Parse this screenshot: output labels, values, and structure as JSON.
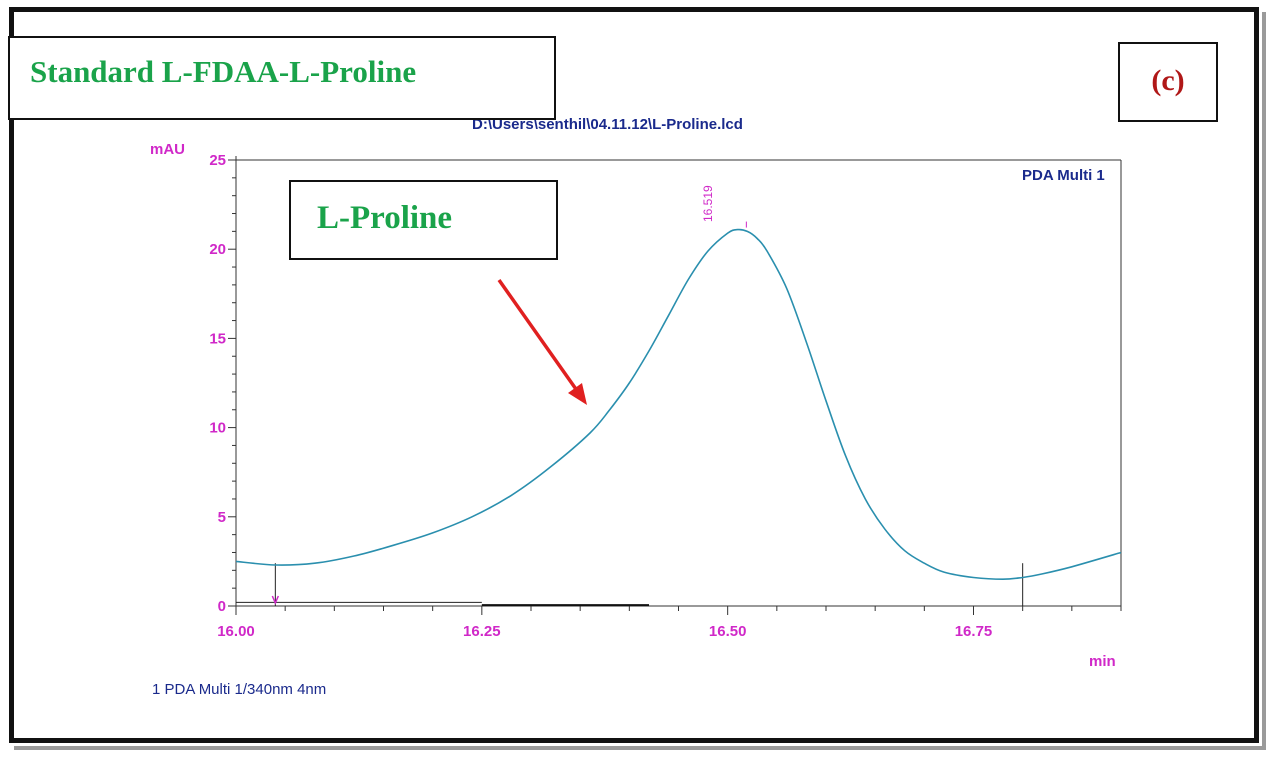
{
  "figure": {
    "title": "Standard L-FDAA-L-Proline",
    "panel_label": "(c)",
    "peak_callout": "L-Proline"
  },
  "colors": {
    "title_green": "#1aa34a",
    "panel_red": "#b01818",
    "trace_teal": "#2a8fae",
    "axis_magenta": "#d028c8",
    "header_navy": "#1a2a8c",
    "arrow_red": "#e02020"
  },
  "chart_data": {
    "type": "line",
    "file_path": "D:\\Users\\senthil\\04.11.12\\L-Proline.lcd",
    "ylabel": "mAU",
    "xlabel": "min",
    "channel_label": "PDA Multi 1",
    "footer": "1  PDA Multi 1/340nm 4nm",
    "xlim": [
      16.0,
      16.9
    ],
    "ylim": [
      0,
      25
    ],
    "x_ticks": [
      "16.00",
      "16.25",
      "16.50",
      "16.75"
    ],
    "x_tick_values": [
      16.0,
      16.25,
      16.5,
      16.75
    ],
    "y_ticks": [
      "0",
      "5",
      "10",
      "15",
      "20",
      "25"
    ],
    "y_tick_values": [
      0,
      5,
      10,
      15,
      20,
      25
    ],
    "peak": {
      "rt_label": "16.519",
      "rt": 16.519,
      "height": 21.1
    },
    "series": [
      {
        "x": [
          16.0,
          16.04,
          16.08,
          16.12,
          16.16,
          16.2,
          16.24,
          16.28,
          16.32,
          16.36,
          16.38,
          16.4,
          16.42,
          16.44,
          16.46,
          16.48,
          16.5,
          16.51,
          16.52,
          16.53,
          16.54,
          16.56,
          16.58,
          16.6,
          16.62,
          16.64,
          16.66,
          16.68,
          16.7,
          16.72,
          16.75,
          16.78,
          16.8,
          16.82,
          16.85,
          16.9
        ],
        "y": [
          2.5,
          2.3,
          2.4,
          2.8,
          3.4,
          4.1,
          5.0,
          6.2,
          7.8,
          9.7,
          11.0,
          12.5,
          14.3,
          16.3,
          18.3,
          19.9,
          20.9,
          21.1,
          21.0,
          20.6,
          19.9,
          17.8,
          14.8,
          11.5,
          8.4,
          6.0,
          4.3,
          3.1,
          2.4,
          1.9,
          1.6,
          1.5,
          1.6,
          1.8,
          2.2,
          3.0
        ]
      }
    ],
    "integration_markers_x": [
      16.04,
      16.8
    ]
  }
}
